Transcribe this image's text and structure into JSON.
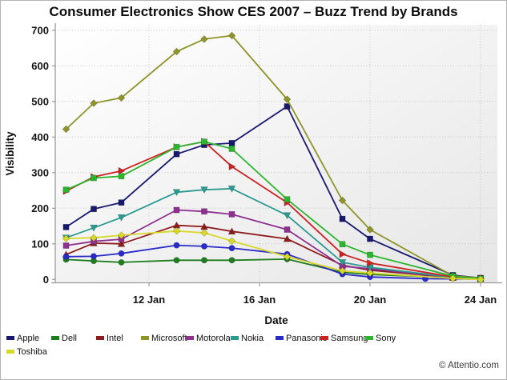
{
  "chart_data": {
    "type": "line",
    "title": "Consumer Electronics Show CES 2007 – Buzz Trend by Brands",
    "xlabel": "Date",
    "ylabel": "Visibility",
    "x_unit": "day of January 2007",
    "x_tick_days": [
      12,
      16,
      20,
      24
    ],
    "x_tick_labels": [
      "12 Jan",
      "16 Jan",
      "20 Jan",
      "24 Jan"
    ],
    "ylim": [
      0,
      700
    ],
    "y_ticks": [
      0,
      100,
      200,
      300,
      400,
      500,
      600,
      700
    ],
    "grid": "dotted",
    "legend_position": "bottom",
    "days": [
      9,
      10,
      11,
      13,
      14,
      15,
      17,
      19,
      20,
      22,
      23,
      24
    ],
    "series": [
      {
        "name": "Apple",
        "color": "#18186e",
        "marker": "square",
        "values": [
          147,
          198,
          216,
          352,
          378,
          383,
          486,
          170,
          114,
          null,
          12,
          4
        ]
      },
      {
        "name": "Dell",
        "color": "#1e7d1e",
        "marker": "circle",
        "values": [
          56,
          52,
          48,
          54,
          54,
          54,
          57,
          20,
          14,
          null,
          5,
          2
        ]
      },
      {
        "name": "Intel",
        "color": "#8c1c1c",
        "marker": "triangle-up",
        "values": [
          70,
          102,
          100,
          152,
          148,
          135,
          114,
          40,
          26,
          null,
          5,
          2
        ]
      },
      {
        "name": "Microsoft",
        "color": "#8f9428",
        "marker": "diamond",
        "values": [
          422,
          495,
          510,
          640,
          675,
          685,
          506,
          222,
          140,
          null,
          10,
          4
        ]
      },
      {
        "name": "Motorola",
        "color": "#8f2f8f",
        "marker": "square",
        "values": [
          95,
          107,
          113,
          195,
          191,
          183,
          140,
          37,
          30,
          null,
          5,
          2
        ]
      },
      {
        "name": "Nokia",
        "color": "#2b9a90",
        "marker": "triangle-down",
        "values": [
          117,
          145,
          174,
          245,
          252,
          255,
          180,
          48,
          34,
          null,
          6,
          2
        ]
      },
      {
        "name": "Panasonic",
        "color": "#2a2ac8",
        "marker": "circle",
        "values": [
          64,
          65,
          73,
          96,
          93,
          88,
          71,
          15,
          7,
          2,
          null,
          1
        ]
      },
      {
        "name": "Samsung",
        "color": "#cc2222",
        "marker": "triangle-right",
        "values": [
          248,
          288,
          305,
          372,
          387,
          317,
          216,
          71,
          46,
          null,
          7,
          2
        ]
      },
      {
        "name": "Sony",
        "color": "#2eb52e",
        "marker": "square",
        "values": [
          252,
          285,
          290,
          372,
          387,
          367,
          225,
          99,
          69,
          null,
          9,
          2
        ]
      },
      {
        "name": "Toshiba",
        "color": "#d8d828",
        "marker": "diamond",
        "values": [
          115,
          117,
          124,
          136,
          131,
          108,
          64,
          24,
          18,
          null,
          3,
          0
        ]
      }
    ]
  },
  "footer": {
    "copyright": "© Attentio.com"
  }
}
